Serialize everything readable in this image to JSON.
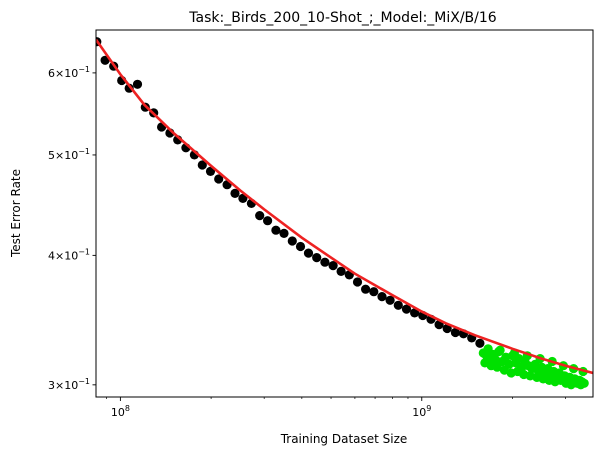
{
  "chart_data": {
    "type": "scatter",
    "title": "Task:_Birds_200_10-Shot_;_Model:_MiX/B/16",
    "xlabel": "Training Dataset Size",
    "ylabel": "Test Error Rate",
    "xscale": "log",
    "yscale": "log",
    "xlim": [
      83000000,
      3700000000
    ],
    "ylim": [
      0.292,
      0.66
    ],
    "grid": false,
    "legend": "none",
    "x_ticks": [
      {
        "value": 100000000,
        "base": "10",
        "exp": "8"
      },
      {
        "value": 1000000000,
        "base": "10",
        "exp": "9"
      }
    ],
    "y_ticks": [
      {
        "value": 0.6,
        "coef": "6",
        "base": "10",
        "exp": "−1"
      },
      {
        "value": 0.5,
        "coef": "5",
        "base": "10",
        "exp": "−1"
      },
      {
        "value": 0.4,
        "coef": "4",
        "base": "10",
        "exp": "−1"
      },
      {
        "value": 0.3,
        "coef": "3",
        "base": "10",
        "exp": "−1"
      }
    ],
    "colors": {
      "train_points": "#000000",
      "heldout_points": "#00e000",
      "fit_line": "#ee2222"
    },
    "series": [
      {
        "kind": "points",
        "color_key": "train_points",
        "x": [
          83500000,
          89000000,
          95000000,
          101000000,
          107000000,
          114000000,
          121000000,
          129000000,
          137000000,
          146000000,
          155000000,
          165000000,
          176000000,
          187000000,
          199000000,
          212000000,
          226000000,
          240000000,
          255000000,
          272000000,
          290000000,
          308000000,
          328000000,
          349000000,
          372000000,
          396000000,
          421000000,
          448000000,
          477000000,
          508000000,
          540000000,
          575000000,
          612000000,
          651000000,
          693000000,
          738000000,
          785000000,
          836000000,
          890000000,
          947000000,
          1008000000,
          1073000000,
          1142000000,
          1215000000,
          1293000000,
          1376000000,
          1465000000,
          1559000000
        ],
        "y": [
          0.643,
          0.617,
          0.609,
          0.59,
          0.58,
          0.585,
          0.556,
          0.549,
          0.532,
          0.525,
          0.517,
          0.508,
          0.5,
          0.489,
          0.482,
          0.474,
          0.468,
          0.459,
          0.454,
          0.449,
          0.437,
          0.432,
          0.423,
          0.42,
          0.413,
          0.408,
          0.402,
          0.398,
          0.394,
          0.391,
          0.386,
          0.383,
          0.377,
          0.371,
          0.369,
          0.365,
          0.362,
          0.358,
          0.355,
          0.352,
          0.35,
          0.347,
          0.343,
          0.34,
          0.337,
          0.336,
          0.333,
          0.329
        ]
      },
      {
        "kind": "points",
        "color_key": "heldout_points",
        "x": [
          1600000000,
          1640000000,
          1680000000,
          1720000000,
          1760000000,
          1800000000,
          1850000000,
          1900000000,
          1950000000,
          2000000000,
          2050000000,
          2100000000,
          2150000000,
          2200000000,
          2260000000,
          2320000000,
          2380000000,
          2440000000,
          2500000000,
          2560000000,
          2620000000,
          2680000000,
          2740000000,
          2800000000,
          2860000000,
          2920000000,
          2980000000,
          3040000000,
          3100000000,
          3160000000,
          3220000000,
          3280000000,
          3340000000,
          3400000000,
          3460000000,
          1620000000,
          1700000000,
          1780000000,
          1880000000,
          1980000000,
          2080000000,
          2180000000,
          2290000000,
          2410000000,
          2530000000,
          2650000000,
          2770000000,
          2890000000,
          3010000000,
          3130000000,
          3250000000,
          3370000000,
          1660000000,
          1820000000,
          2030000000,
          2240000000,
          2470000000,
          2710000000,
          2950000000,
          3190000000,
          3430000000
        ],
        "y": [
          0.322,
          0.32,
          0.318,
          0.321,
          0.317,
          0.323,
          0.316,
          0.319,
          0.314,
          0.32,
          0.315,
          0.318,
          0.312,
          0.316,
          0.313,
          0.311,
          0.314,
          0.309,
          0.312,
          0.308,
          0.311,
          0.306,
          0.309,
          0.305,
          0.308,
          0.304,
          0.306,
          0.303,
          0.305,
          0.302,
          0.304,
          0.301,
          0.303,
          0.302,
          0.301,
          0.315,
          0.313,
          0.312,
          0.31,
          0.308,
          0.309,
          0.307,
          0.306,
          0.305,
          0.304,
          0.303,
          0.302,
          0.303,
          0.301,
          0.3,
          0.302,
          0.3,
          0.325,
          0.324,
          0.322,
          0.32,
          0.318,
          0.316,
          0.313,
          0.311,
          0.309
        ]
      },
      {
        "kind": "line",
        "color_key": "fit_line",
        "x": [
          83000000,
          100000000,
          120000000,
          150000000,
          200000000,
          250000000,
          300000000,
          400000000,
          500000000,
          600000000,
          800000000,
          1000000000,
          1200000000,
          1500000000,
          2000000000,
          2500000000,
          3000000000,
          3700000000
        ],
        "y": [
          0.646,
          0.598,
          0.559,
          0.525,
          0.488,
          0.462,
          0.443,
          0.416,
          0.398,
          0.384,
          0.366,
          0.353,
          0.344,
          0.335,
          0.325,
          0.318,
          0.313,
          0.308
        ]
      }
    ]
  }
}
